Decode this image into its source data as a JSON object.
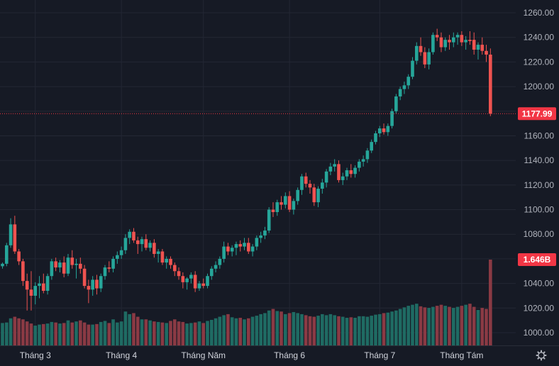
{
  "colors": {
    "background": "#161a25",
    "grid": "#232734",
    "up": "#26a69a",
    "down": "#ef5350",
    "volume_up": "#1f6b63",
    "volume_down": "#8a3a44",
    "badge": "#f23645",
    "label": "#b2b5be"
  },
  "settings_icon": "gear-icon",
  "chart_data": {
    "type": "candlestick",
    "grid": true,
    "y_axis_position": "right",
    "ylim": [
      990,
      1265
    ],
    "y_ticks": [
      "1000.00",
      "1020.00",
      "1040.00",
      "1060.00",
      "1080.00",
      "1100.00",
      "1120.00",
      "1140.00",
      "1160.00",
      "1180.00",
      "1200.00",
      "1220.00",
      "1240.00",
      "1260.00"
    ],
    "x_ticks": [
      {
        "label": "Tháng 3",
        "index": 8
      },
      {
        "label": "Tháng 4",
        "index": 29
      },
      {
        "label": "Tháng Năm",
        "index": 49
      },
      {
        "label": "Tháng 6",
        "index": 70
      },
      {
        "label": "Tháng 7",
        "index": 92
      },
      {
        "label": "Tháng Tám",
        "index": 112
      }
    ],
    "last_price_label": "1177.99",
    "last_price": 1177.99,
    "volume_label": "1.646B",
    "volume_max": 1.646,
    "bars": [
      [
        1054,
        1057,
        1052,
        1056,
        0.43
      ],
      [
        1056,
        1073,
        1054,
        1071,
        0.44
      ],
      [
        1071,
        1093,
        1069,
        1088,
        0.52
      ],
      [
        1088,
        1095,
        1064,
        1066,
        0.55
      ],
      [
        1066,
        1068,
        1055,
        1058,
        0.52
      ],
      [
        1058,
        1060,
        1038,
        1042,
        0.5
      ],
      [
        1042,
        1048,
        1018,
        1035,
        0.46
      ],
      [
        1035,
        1050,
        1018,
        1030,
        0.42
      ],
      [
        1030,
        1041,
        1023,
        1038,
        0.38
      ],
      [
        1038,
        1046,
        1028,
        1040,
        0.4
      ],
      [
        1040,
        1048,
        1032,
        1034,
        0.41
      ],
      [
        1034,
        1048,
        1031,
        1046,
        0.42
      ],
      [
        1046,
        1060,
        1043,
        1058,
        0.45
      ],
      [
        1058,
        1061,
        1050,
        1053,
        0.44
      ],
      [
        1053,
        1059,
        1049,
        1057,
        0.42
      ],
      [
        1057,
        1062,
        1045,
        1048,
        0.43
      ],
      [
        1048,
        1064,
        1046,
        1061,
        0.48
      ],
      [
        1061,
        1067,
        1052,
        1055,
        0.44
      ],
      [
        1055,
        1060,
        1044,
        1056,
        0.46
      ],
      [
        1056,
        1061,
        1048,
        1052,
        0.48
      ],
      [
        1052,
        1055,
        1036,
        1038,
        0.44
      ],
      [
        1038,
        1043,
        1024,
        1035,
        0.4
      ],
      [
        1035,
        1046,
        1030,
        1043,
        0.4
      ],
      [
        1043,
        1047,
        1031,
        1036,
        0.41
      ],
      [
        1036,
        1048,
        1033,
        1046,
        0.45
      ],
      [
        1046,
        1055,
        1043,
        1053,
        0.47
      ],
      [
        1053,
        1058,
        1049,
        1052,
        0.43
      ],
      [
        1052,
        1062,
        1049,
        1060,
        0.5
      ],
      [
        1060,
        1066,
        1056,
        1063,
        0.44
      ],
      [
        1063,
        1070,
        1060,
        1067,
        0.46
      ],
      [
        1067,
        1080,
        1064,
        1077,
        0.65
      ],
      [
        1077,
        1084,
        1072,
        1082,
        0.6
      ],
      [
        1082,
        1085,
        1073,
        1075,
        0.62
      ],
      [
        1075,
        1078,
        1064,
        1072,
        0.55
      ],
      [
        1072,
        1078,
        1066,
        1076,
        0.5
      ],
      [
        1076,
        1080,
        1067,
        1069,
        0.5
      ],
      [
        1069,
        1075,
        1066,
        1073,
        0.48
      ],
      [
        1073,
        1076,
        1061,
        1064,
        0.46
      ],
      [
        1064,
        1068,
        1057,
        1066,
        0.45
      ],
      [
        1066,
        1068,
        1055,
        1057,
        0.44
      ],
      [
        1057,
        1062,
        1052,
        1060,
        0.43
      ],
      [
        1060,
        1062,
        1052,
        1055,
        0.47
      ],
      [
        1055,
        1057,
        1046,
        1050,
        0.5
      ],
      [
        1050,
        1053,
        1043,
        1046,
        0.46
      ],
      [
        1046,
        1049,
        1036,
        1041,
        0.45
      ],
      [
        1041,
        1045,
        1035,
        1044,
        0.42
      ],
      [
        1044,
        1049,
        1040,
        1047,
        0.43
      ],
      [
        1047,
        1050,
        1033,
        1036,
        0.44
      ],
      [
        1036,
        1042,
        1034,
        1040,
        0.46
      ],
      [
        1040,
        1044,
        1036,
        1038,
        0.43
      ],
      [
        1038,
        1048,
        1036,
        1046,
        0.47
      ],
      [
        1046,
        1054,
        1043,
        1052,
        0.49
      ],
      [
        1052,
        1058,
        1049,
        1055,
        0.52
      ],
      [
        1055,
        1062,
        1052,
        1060,
        0.55
      ],
      [
        1060,
        1074,
        1057,
        1070,
        0.58
      ],
      [
        1070,
        1073,
        1063,
        1066,
        0.6
      ],
      [
        1066,
        1071,
        1062,
        1069,
        0.54
      ],
      [
        1069,
        1074,
        1063,
        1072,
        0.52
      ],
      [
        1072,
        1075,
        1066,
        1070,
        0.53
      ],
      [
        1070,
        1077,
        1067,
        1073,
        0.5
      ],
      [
        1073,
        1077,
        1064,
        1066,
        0.52
      ],
      [
        1066,
        1072,
        1062,
        1070,
        0.55
      ],
      [
        1070,
        1079,
        1067,
        1077,
        0.57
      ],
      [
        1077,
        1082,
        1073,
        1079,
        0.6
      ],
      [
        1079,
        1086,
        1076,
        1083,
        0.62
      ],
      [
        1083,
        1102,
        1081,
        1100,
        0.67
      ],
      [
        1100,
        1106,
        1094,
        1098,
        0.7
      ],
      [
        1098,
        1108,
        1095,
        1106,
        0.66
      ],
      [
        1106,
        1111,
        1100,
        1104,
        0.65
      ],
      [
        1104,
        1114,
        1101,
        1111,
        0.6
      ],
      [
        1111,
        1115,
        1098,
        1100,
        0.62
      ],
      [
        1100,
        1109,
        1096,
        1107,
        0.64
      ],
      [
        1107,
        1118,
        1104,
        1116,
        0.62
      ],
      [
        1116,
        1129,
        1112,
        1127,
        0.6
      ],
      [
        1127,
        1130,
        1118,
        1121,
        0.58
      ],
      [
        1121,
        1124,
        1113,
        1118,
        0.56
      ],
      [
        1118,
        1121,
        1103,
        1106,
        0.55
      ],
      [
        1106,
        1119,
        1102,
        1117,
        0.57
      ],
      [
        1117,
        1125,
        1113,
        1122,
        0.6
      ],
      [
        1122,
        1133,
        1118,
        1131,
        0.58
      ],
      [
        1131,
        1138,
        1128,
        1135,
        0.6
      ],
      [
        1135,
        1141,
        1131,
        1137,
        0.58
      ],
      [
        1137,
        1140,
        1122,
        1124,
        0.56
      ],
      [
        1124,
        1130,
        1120,
        1127,
        0.55
      ],
      [
        1127,
        1134,
        1124,
        1132,
        0.53
      ],
      [
        1132,
        1137,
        1126,
        1129,
        0.54
      ],
      [
        1129,
        1136,
        1126,
        1134,
        0.53
      ],
      [
        1134,
        1141,
        1131,
        1139,
        0.56
      ],
      [
        1139,
        1144,
        1135,
        1141,
        0.56
      ],
      [
        1141,
        1150,
        1138,
        1148,
        0.55
      ],
      [
        1148,
        1157,
        1146,
        1155,
        0.57
      ],
      [
        1155,
        1164,
        1153,
        1162,
        0.59
      ],
      [
        1162,
        1168,
        1159,
        1166,
        0.6
      ],
      [
        1166,
        1170,
        1161,
        1163,
        0.62
      ],
      [
        1163,
        1170,
        1160,
        1168,
        0.63
      ],
      [
        1168,
        1182,
        1166,
        1180,
        0.65
      ],
      [
        1180,
        1194,
        1178,
        1192,
        0.67
      ],
      [
        1192,
        1200,
        1189,
        1198,
        0.7
      ],
      [
        1198,
        1204,
        1194,
        1201,
        0.73
      ],
      [
        1201,
        1210,
        1198,
        1208,
        0.76
      ],
      [
        1208,
        1224,
        1206,
        1221,
        0.78
      ],
      [
        1221,
        1236,
        1218,
        1233,
        0.8
      ],
      [
        1233,
        1240,
        1225,
        1228,
        0.75
      ],
      [
        1228,
        1232,
        1215,
        1218,
        0.73
      ],
      [
        1218,
        1231,
        1214,
        1228,
        0.72
      ],
      [
        1228,
        1244,
        1226,
        1242,
        0.74
      ],
      [
        1242,
        1247,
        1237,
        1240,
        0.76
      ],
      [
        1240,
        1244,
        1228,
        1232,
        0.78
      ],
      [
        1232,
        1240,
        1229,
        1238,
        0.76
      ],
      [
        1238,
        1242,
        1230,
        1236,
        0.74
      ],
      [
        1236,
        1244,
        1232,
        1240,
        0.72
      ],
      [
        1240,
        1244,
        1234,
        1242,
        0.74
      ],
      [
        1242,
        1245,
        1233,
        1236,
        0.76
      ],
      [
        1236,
        1241,
        1230,
        1238,
        0.78
      ],
      [
        1238,
        1245,
        1234,
        1237,
        0.8
      ],
      [
        1238,
        1244,
        1226,
        1230,
        0.74
      ],
      [
        1230,
        1236,
        1222,
        1234,
        0.68
      ],
      [
        1234,
        1240,
        1226,
        1229,
        0.72
      ],
      [
        1229,
        1234,
        1220,
        1226,
        0.7
      ],
      [
        1226,
        1231,
        1176,
        1177.99,
        1.646
      ]
    ]
  }
}
